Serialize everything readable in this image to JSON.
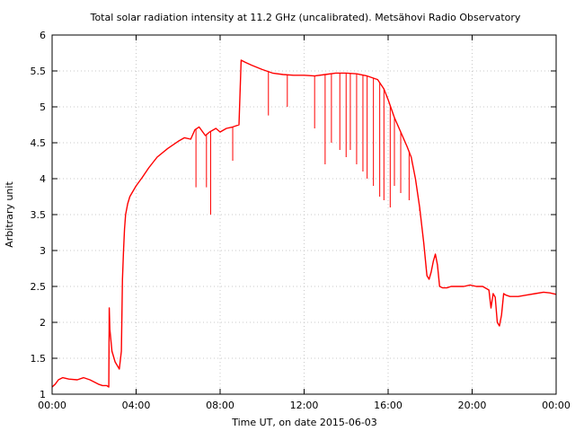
{
  "chart_data": {
    "type": "line",
    "title": "Total solar radiation intensity at 11.2 GHz (uncalibrated). Metsähovi Radio Observatory",
    "xlabel": "Time UT, on date 2015-06-03",
    "ylabel": "Arbitrary unit",
    "xlim": [
      0,
      24
    ],
    "ylim": [
      1,
      6
    ],
    "x_tick_labels": [
      "00:00",
      "04:00",
      "08:00",
      "12:00",
      "16:00",
      "20:00",
      "00:00"
    ],
    "y_tick_labels": [
      "1",
      "1.5",
      "2",
      "2.5",
      "3",
      "3.5",
      "4",
      "4.5",
      "5",
      "5.5",
      "6"
    ],
    "grid": true,
    "series_color": "#ff0000",
    "series": [
      {
        "x_hours": [
          0.0,
          0.15,
          0.3,
          0.5,
          0.8,
          1.2,
          1.5,
          1.8,
          2.0,
          2.2,
          2.4,
          2.6,
          2.7,
          2.72,
          2.75,
          2.85,
          3.0,
          3.2,
          3.3,
          3.35,
          3.4,
          3.45,
          3.5,
          3.6,
          3.7,
          3.8,
          4.0,
          4.3,
          4.6,
          5.0,
          5.5,
          6.0,
          6.3,
          6.6,
          6.8,
          7.0,
          7.3,
          7.5,
          7.8,
          8.0,
          8.3,
          8.6,
          8.9,
          9.0,
          9.2,
          9.5,
          10.0,
          10.5,
          11.0,
          11.5,
          12.0,
          12.5,
          13.0,
          13.5,
          14.0,
          14.5,
          15.0,
          15.5,
          15.8,
          16.0,
          16.3,
          16.6,
          16.9,
          17.1,
          17.3,
          17.5,
          17.7,
          17.85,
          17.95,
          18.05,
          18.15,
          18.25,
          18.35,
          18.45,
          18.6,
          18.8,
          19.0,
          19.3,
          19.6,
          19.9,
          20.2,
          20.5,
          20.8,
          20.9,
          21.0,
          21.1,
          21.2,
          21.3,
          21.4,
          21.5,
          21.6,
          21.8,
          22.2,
          22.6,
          23.0,
          23.4,
          23.7,
          24.0
        ],
        "y": [
          1.1,
          1.14,
          1.2,
          1.23,
          1.21,
          1.2,
          1.23,
          1.2,
          1.17,
          1.14,
          1.12,
          1.12,
          1.1,
          2.2,
          1.9,
          1.6,
          1.45,
          1.35,
          1.6,
          2.6,
          3.0,
          3.3,
          3.5,
          3.65,
          3.75,
          3.8,
          3.9,
          4.02,
          4.15,
          4.3,
          4.42,
          4.52,
          4.57,
          4.55,
          4.68,
          4.72,
          4.6,
          4.65,
          4.7,
          4.65,
          4.7,
          4.72,
          4.75,
          5.65,
          5.62,
          5.58,
          5.52,
          5.47,
          5.45,
          5.44,
          5.44,
          5.43,
          5.45,
          5.47,
          5.47,
          5.46,
          5.43,
          5.38,
          5.25,
          5.1,
          4.85,
          4.65,
          4.45,
          4.3,
          4.0,
          3.6,
          3.1,
          2.65,
          2.6,
          2.7,
          2.85,
          2.95,
          2.8,
          2.5,
          2.48,
          2.48,
          2.5,
          2.5,
          2.5,
          2.52,
          2.5,
          2.5,
          2.45,
          2.2,
          2.4,
          2.35,
          2.0,
          1.95,
          2.1,
          2.4,
          2.38,
          2.36,
          2.36,
          2.38,
          2.4,
          2.42,
          2.41,
          2.39
        ]
      }
    ],
    "dips": [
      {
        "x": 6.85,
        "y": 3.88
      },
      {
        "x": 7.35,
        "y": 3.88
      },
      {
        "x": 7.55,
        "y": 3.5
      },
      {
        "x": 8.6,
        "y": 4.25
      },
      {
        "x": 10.3,
        "y": 4.88
      },
      {
        "x": 11.2,
        "y": 5.0
      },
      {
        "x": 12.5,
        "y": 4.7
      },
      {
        "x": 13.0,
        "y": 4.2
      },
      {
        "x": 13.3,
        "y": 4.5
      },
      {
        "x": 13.7,
        "y": 4.4
      },
      {
        "x": 14.0,
        "y": 4.3
      },
      {
        "x": 14.2,
        "y": 4.4
      },
      {
        "x": 14.5,
        "y": 4.2
      },
      {
        "x": 14.8,
        "y": 4.1
      },
      {
        "x": 15.0,
        "y": 4.0
      },
      {
        "x": 15.3,
        "y": 3.9
      },
      {
        "x": 15.6,
        "y": 3.75
      },
      {
        "x": 15.8,
        "y": 3.7
      },
      {
        "x": 16.1,
        "y": 3.6
      },
      {
        "x": 16.3,
        "y": 3.9
      },
      {
        "x": 16.6,
        "y": 3.8
      },
      {
        "x": 17.0,
        "y": 3.7
      },
      {
        "x": 17.5,
        "y": 3.55
      }
    ]
  }
}
